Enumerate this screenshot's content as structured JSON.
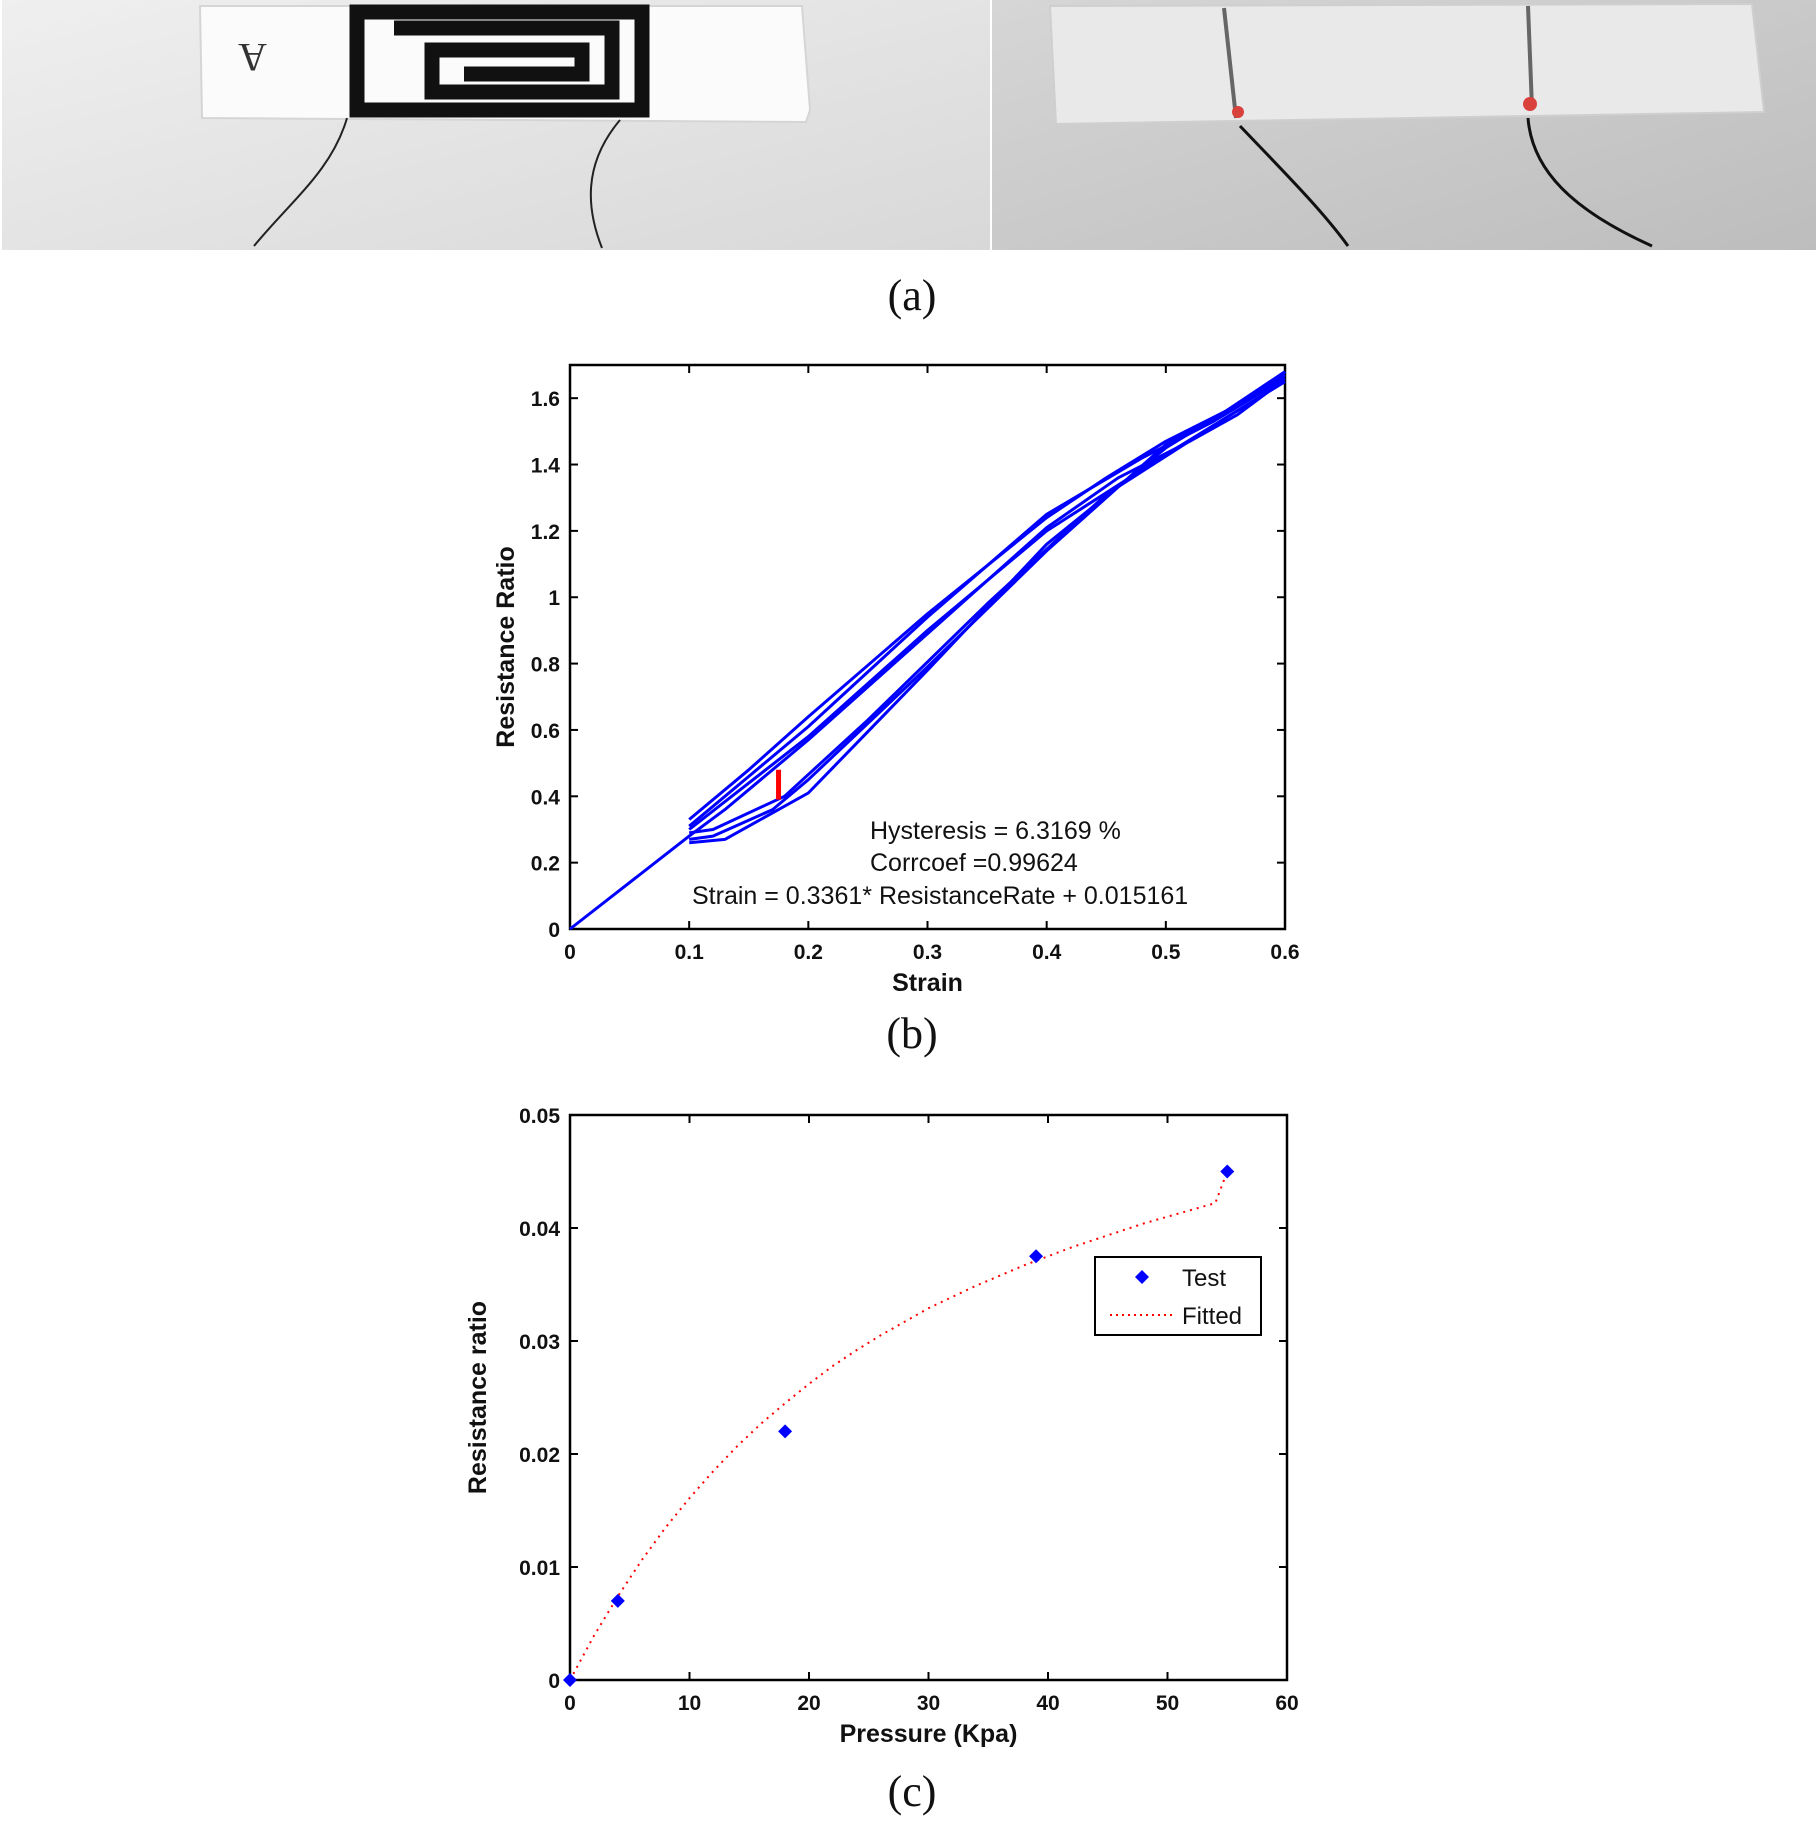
{
  "captions": {
    "a": "(a)",
    "b": "(b)",
    "c": "(c)"
  },
  "photos": [
    {
      "name": "printed-sensor-photo",
      "background": "#e6e6e6",
      "strip": "#fbfbfb",
      "marking": "A"
    },
    {
      "name": "coated-sensor-photo",
      "background": "#cfcfcf",
      "strip": "#e9e9e9",
      "dot_color": "#d9413c"
    }
  ],
  "chart_data": [
    {
      "id": "b",
      "type": "line",
      "xlabel": "Strain",
      "ylabel": "Resistance Ratio",
      "xlim": [
        0,
        0.6
      ],
      "ylim": [
        0,
        1.7
      ],
      "xticks": [
        "0",
        "0.1",
        "0.2",
        "0.3",
        "0.4",
        "0.5",
        "0.6"
      ],
      "yticks": [
        "0",
        "0.2",
        "0.4",
        "0.6",
        "0.8",
        "1",
        "1.2",
        "1.4",
        "1.6"
      ],
      "grid": false,
      "line_color": "#0000ff",
      "marker_color": "#ff0000",
      "annotations": [
        "Hysteresis = 6.3169 %",
        "Corrcoef =0.99624",
        "Strain = 0.3361* ResistanceRate + 0.015161"
      ],
      "series": [
        {
          "x": [
            0,
            0.1,
            0.13,
            0.2,
            0.3,
            0.4,
            0.46,
            0.52,
            0.56,
            0.59,
            0.6
          ],
          "y": [
            0,
            0.28,
            0.36,
            0.57,
            0.89,
            1.21,
            1.36,
            1.47,
            1.55,
            1.63,
            1.68
          ]
        },
        {
          "x": [
            0.6,
            0.55,
            0.5,
            0.45,
            0.4,
            0.3,
            0.2,
            0.15,
            0.1
          ],
          "y": [
            1.68,
            1.56,
            1.47,
            1.36,
            1.24,
            0.95,
            0.64,
            0.48,
            0.33
          ]
        },
        {
          "x": [
            0.1,
            0.12,
            0.17,
            0.2,
            0.3,
            0.4,
            0.5,
            0.6
          ],
          "y": [
            0.27,
            0.28,
            0.36,
            0.45,
            0.79,
            1.14,
            1.46,
            1.66
          ]
        },
        {
          "x": [
            0.6,
            0.54,
            0.48,
            0.4,
            0.3,
            0.2,
            0.15,
            0.1
          ],
          "y": [
            1.66,
            1.53,
            1.42,
            1.25,
            0.94,
            0.61,
            0.46,
            0.31
          ]
        },
        {
          "x": [
            0.1,
            0.12,
            0.18,
            0.25,
            0.35,
            0.45,
            0.55,
            0.6
          ],
          "y": [
            0.29,
            0.3,
            0.4,
            0.63,
            0.98,
            1.31,
            1.54,
            1.65
          ]
        },
        {
          "x": [
            0.6,
            0.5,
            0.4,
            0.3,
            0.2,
            0.1
          ],
          "y": [
            1.65,
            1.43,
            1.2,
            0.9,
            0.58,
            0.3
          ]
        },
        {
          "x": [
            0.1,
            0.13,
            0.2,
            0.3,
            0.4,
            0.5,
            0.6
          ],
          "y": [
            0.26,
            0.27,
            0.41,
            0.78,
            1.16,
            1.45,
            1.67
          ]
        }
      ],
      "marker": {
        "x": 0.175,
        "y": [
          0.39,
          0.48
        ]
      }
    },
    {
      "id": "c",
      "type": "scatter",
      "xlabel": "Pressure (Kpa)",
      "ylabel": "Resistance ratio",
      "xlim": [
        0,
        60
      ],
      "ylim": [
        0,
        0.05
      ],
      "xticks": [
        "0",
        "10",
        "20",
        "30",
        "40",
        "50",
        "60"
      ],
      "yticks": [
        "0",
        "0.01",
        "0.02",
        "0.03",
        "0.04",
        "0.05"
      ],
      "grid": false,
      "legend": {
        "position": "right",
        "entries": [
          "Test",
          "Fitted"
        ]
      },
      "series": [
        {
          "name": "Test",
          "color": "#0000ff",
          "x": [
            0,
            4,
            18,
            39,
            55
          ],
          "y": [
            0,
            0.007,
            0.022,
            0.0375,
            0.045
          ]
        },
        {
          "name": "Fitted",
          "color": "#ff0000",
          "x": [
            0,
            2,
            4,
            6,
            8,
            10,
            12,
            14,
            16,
            18,
            20,
            22,
            24,
            26,
            28,
            30,
            32,
            34,
            36,
            38,
            40,
            42,
            44,
            46,
            48,
            50,
            52,
            54,
            55
          ],
          "y": [
            0,
            0.0039,
            0.0074,
            0.0106,
            0.0135,
            0.0161,
            0.0185,
            0.0207,
            0.0227,
            0.0245,
            0.0262,
            0.0278,
            0.0292,
            0.0305,
            0.0317,
            0.0329,
            0.0339,
            0.0349,
            0.0358,
            0.0367,
            0.0375,
            0.0383,
            0.039,
            0.0397,
            0.0404,
            0.041,
            0.0416,
            0.0422,
            0.045
          ]
        }
      ]
    }
  ]
}
